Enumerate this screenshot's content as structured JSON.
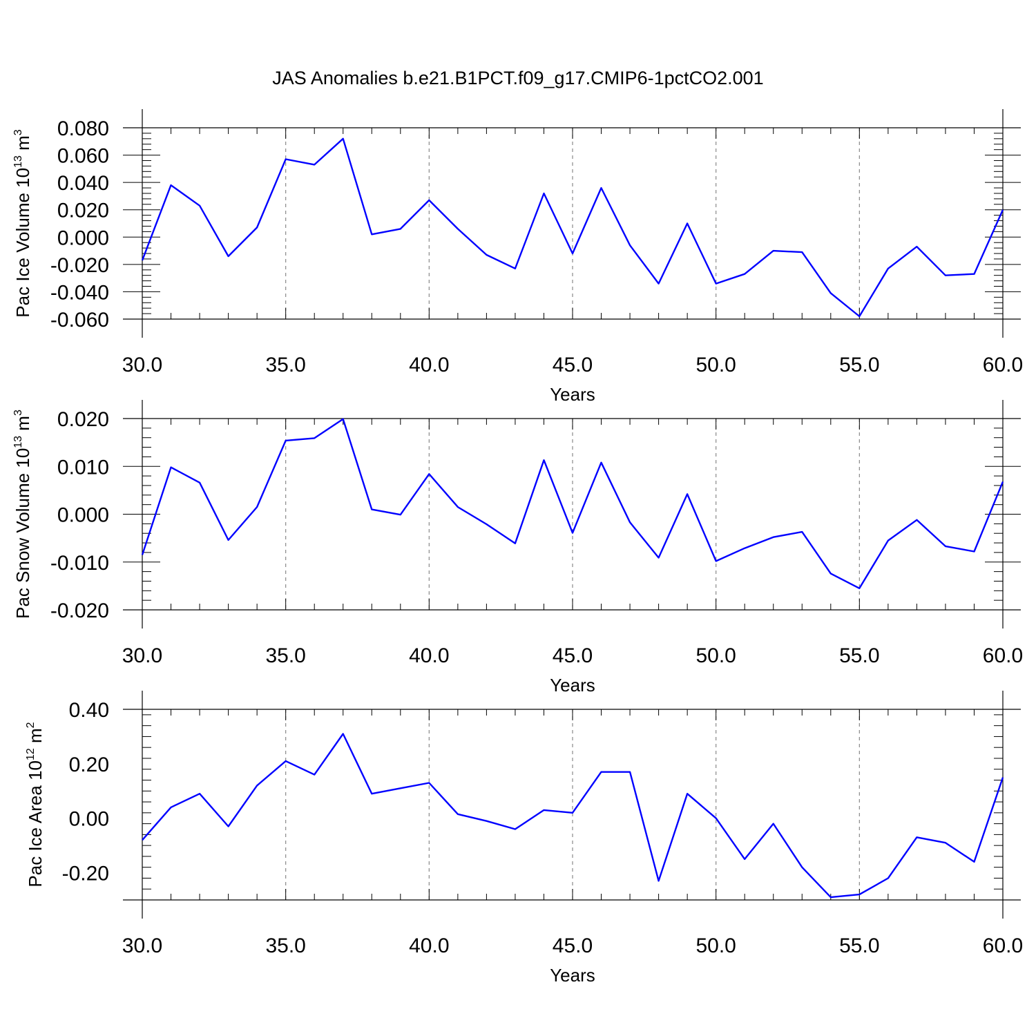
{
  "title": "JAS Anomalies b.e21.B1PCT.f09_g17.CMIP6-1pctCO2.001",
  "colors": {
    "series": "#0000ff",
    "grid": "#888888",
    "frame": "#000000"
  },
  "chart_data": [
    {
      "type": "line",
      "xlabel": "Years",
      "ylabel": {
        "text": "Pac Ice Volume 10",
        "sup1": "13",
        "text2": " m",
        "sup2": "3"
      },
      "xlim": [
        30,
        60
      ],
      "ylim": [
        -0.06,
        0.08
      ],
      "xticks": [
        "30.0",
        "35.0",
        "40.0",
        "45.0",
        "50.0",
        "55.0",
        "60.0"
      ],
      "xtick_values": [
        30,
        35,
        40,
        45,
        50,
        55,
        60
      ],
      "yticks": [
        "0.080",
        "0.060",
        "0.040",
        "0.020",
        "0.000",
        "-0.020",
        "-0.040",
        "-0.060"
      ],
      "ytick_values": [
        0.08,
        0.06,
        0.04,
        0.02,
        0.0,
        -0.02,
        -0.04,
        -0.06
      ],
      "grid": "vertical-dashed",
      "x": [
        30,
        31,
        32,
        33,
        34,
        35,
        36,
        37,
        38,
        39,
        40,
        41,
        42,
        43,
        44,
        45,
        46,
        47,
        48,
        49,
        50,
        51,
        52,
        53,
        54,
        55,
        56,
        57,
        58,
        59,
        60
      ],
      "series": [
        {
          "values": [
            -0.017,
            0.038,
            0.023,
            -0.014,
            0.007,
            0.057,
            0.053,
            0.072,
            0.002,
            0.006,
            0.027,
            0.006,
            -0.013,
            -0.023,
            0.032,
            -0.012,
            0.036,
            -0.006,
            -0.034,
            0.01,
            -0.034,
            -0.027,
            -0.01,
            -0.011,
            -0.041,
            -0.058,
            -0.023,
            -0.007,
            -0.028,
            -0.027,
            0.02
          ]
        }
      ]
    },
    {
      "type": "line",
      "xlabel": "Years",
      "ylabel": {
        "text": "Pac Snow Volume 10",
        "sup1": "13",
        "text2": " m",
        "sup2": "3"
      },
      "xlim": [
        30,
        60
      ],
      "ylim": [
        -0.02,
        0.02
      ],
      "xticks": [
        "30.0",
        "35.0",
        "40.0",
        "45.0",
        "50.0",
        "55.0",
        "60.0"
      ],
      "xtick_values": [
        30,
        35,
        40,
        45,
        50,
        55,
        60
      ],
      "yticks": [
        "0.020",
        "0.010",
        "0.000",
        "-0.010",
        "-0.020"
      ],
      "ytick_values": [
        0.02,
        0.01,
        0.0,
        -0.01,
        -0.02
      ],
      "grid": "vertical-dashed",
      "x": [
        30,
        31,
        32,
        33,
        34,
        35,
        36,
        37,
        38,
        39,
        40,
        41,
        42,
        43,
        44,
        45,
        46,
        47,
        48,
        49,
        50,
        51,
        52,
        53,
        54,
        55,
        56,
        57,
        58,
        59,
        60
      ],
      "series": [
        {
          "values": [
            -0.0085,
            0.0098,
            0.0066,
            -0.0054,
            0.0015,
            0.0154,
            0.0159,
            0.0199,
            0.001,
            -0.0001,
            0.0084,
            0.0015,
            -0.0021,
            -0.0061,
            0.0113,
            -0.0039,
            0.0108,
            -0.0017,
            -0.0091,
            0.0042,
            -0.0098,
            -0.0071,
            -0.0048,
            -0.0037,
            -0.0124,
            -0.0155,
            -0.0055,
            -0.0012,
            -0.0067,
            -0.0078,
            0.0068
          ]
        }
      ]
    },
    {
      "type": "line",
      "xlabel": "Years",
      "ylabel": {
        "text": "Pac Ice Area 10",
        "sup1": "12",
        "text2": " m",
        "sup2": "2"
      },
      "xlim": [
        30,
        60
      ],
      "ylim": [
        -0.3,
        0.4
      ],
      "xticks": [
        "30.0",
        "35.0",
        "40.0",
        "45.0",
        "50.0",
        "55.0",
        "60.0"
      ],
      "xtick_values": [
        30,
        35,
        40,
        45,
        50,
        55,
        60
      ],
      "yticks": [
        "0.40",
        "0.20",
        "0.00",
        "-0.20"
      ],
      "ytick_values": [
        0.4,
        0.2,
        0.0,
        -0.2
      ],
      "grid": "vertical-dashed",
      "x": [
        30,
        31,
        32,
        33,
        34,
        35,
        36,
        37,
        38,
        39,
        40,
        41,
        42,
        43,
        44,
        45,
        46,
        47,
        48,
        49,
        50,
        51,
        52,
        53,
        54,
        55,
        56,
        57,
        58,
        59,
        60
      ],
      "series": [
        {
          "values": [
            -0.08,
            0.04,
            0.09,
            -0.03,
            0.12,
            0.21,
            0.16,
            0.31,
            0.09,
            0.11,
            0.13,
            0.015,
            -0.01,
            -0.04,
            0.03,
            0.02,
            0.17,
            0.17,
            -0.23,
            0.09,
            0.0,
            -0.15,
            -0.02,
            -0.18,
            -0.29,
            -0.28,
            -0.22,
            -0.07,
            -0.09,
            -0.16,
            0.15
          ]
        }
      ]
    }
  ]
}
